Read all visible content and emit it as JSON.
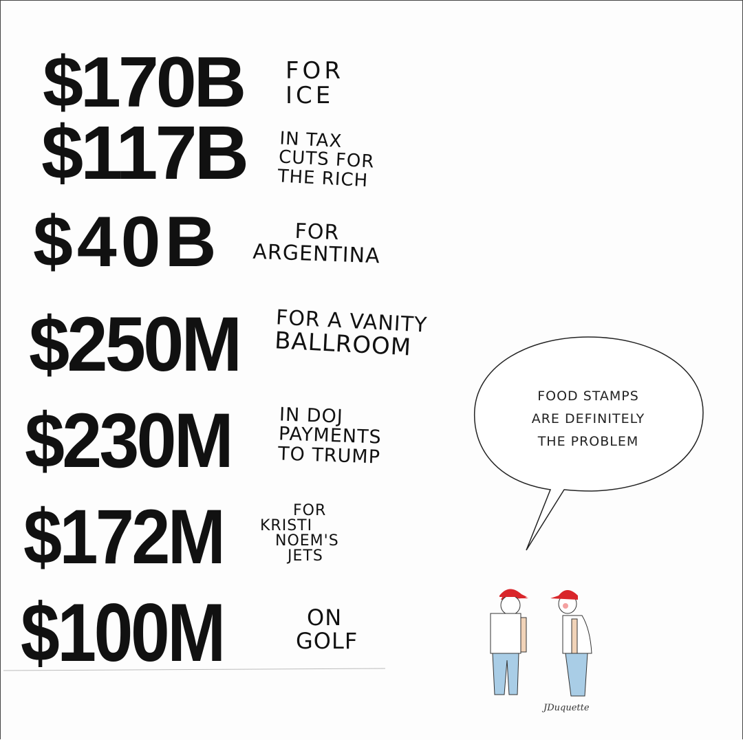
{
  "items": [
    {
      "amount": "$170B",
      "caption": [
        "FOR",
        "ICE"
      ]
    },
    {
      "amount": "$117B",
      "caption": [
        "IN TAX",
        "CUTS FOR",
        "THE RICH"
      ]
    },
    {
      "amount": "$40B",
      "caption": [
        "FOR",
        "ARGENTINA"
      ]
    },
    {
      "amount": "$250M",
      "caption": [
        "FOR A VANITY",
        "BALLROOM"
      ]
    },
    {
      "amount": "$230M",
      "caption": [
        "IN DOJ",
        "PAYMENTS",
        "TO TRUMP"
      ]
    },
    {
      "amount": "$172M",
      "caption": [
        "FOR",
        "KRISTI",
        "NOEM'S",
        "JETS"
      ]
    },
    {
      "amount": "$100M",
      "caption": [
        "ON",
        "GOLF"
      ]
    }
  ],
  "speech_bubble": {
    "lines": [
      "FOOD STAMPS",
      "ARE DEFINITELY",
      "THE PROBLEM"
    ]
  },
  "signature": "JDuquette",
  "colors": {
    "cap": "#d9262b",
    "jeans": "#a9cde6",
    "ink": "#111111"
  }
}
